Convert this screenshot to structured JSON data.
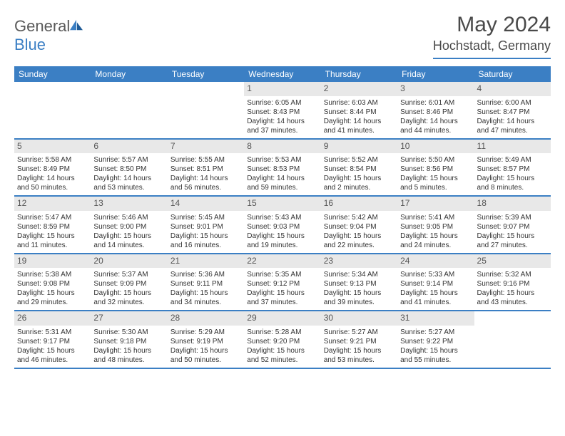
{
  "logo": {
    "text1": "General",
    "text2": "Blue"
  },
  "title": "May 2024",
  "location": "Hochstadt, Germany",
  "colors": {
    "header_bg": "#3b7fc4",
    "daynum_bg": "#e8e8e8",
    "text": "#333333",
    "title": "#4a4a4a"
  },
  "fonts": {
    "title_size": 30,
    "location_size": 18,
    "header_size": 12,
    "cell_size": 10
  },
  "day_names": [
    "Sunday",
    "Monday",
    "Tuesday",
    "Wednesday",
    "Thursday",
    "Friday",
    "Saturday"
  ],
  "weeks": [
    [
      {
        "n": "",
        "sr": "",
        "ss": "",
        "dl": ""
      },
      {
        "n": "",
        "sr": "",
        "ss": "",
        "dl": ""
      },
      {
        "n": "",
        "sr": "",
        "ss": "",
        "dl": ""
      },
      {
        "n": "1",
        "sr": "Sunrise: 6:05 AM",
        "ss": "Sunset: 8:43 PM",
        "dl": "Daylight: 14 hours and 37 minutes."
      },
      {
        "n": "2",
        "sr": "Sunrise: 6:03 AM",
        "ss": "Sunset: 8:44 PM",
        "dl": "Daylight: 14 hours and 41 minutes."
      },
      {
        "n": "3",
        "sr": "Sunrise: 6:01 AM",
        "ss": "Sunset: 8:46 PM",
        "dl": "Daylight: 14 hours and 44 minutes."
      },
      {
        "n": "4",
        "sr": "Sunrise: 6:00 AM",
        "ss": "Sunset: 8:47 PM",
        "dl": "Daylight: 14 hours and 47 minutes."
      }
    ],
    [
      {
        "n": "5",
        "sr": "Sunrise: 5:58 AM",
        "ss": "Sunset: 8:49 PM",
        "dl": "Daylight: 14 hours and 50 minutes."
      },
      {
        "n": "6",
        "sr": "Sunrise: 5:57 AM",
        "ss": "Sunset: 8:50 PM",
        "dl": "Daylight: 14 hours and 53 minutes."
      },
      {
        "n": "7",
        "sr": "Sunrise: 5:55 AM",
        "ss": "Sunset: 8:51 PM",
        "dl": "Daylight: 14 hours and 56 minutes."
      },
      {
        "n": "8",
        "sr": "Sunrise: 5:53 AM",
        "ss": "Sunset: 8:53 PM",
        "dl": "Daylight: 14 hours and 59 minutes."
      },
      {
        "n": "9",
        "sr": "Sunrise: 5:52 AM",
        "ss": "Sunset: 8:54 PM",
        "dl": "Daylight: 15 hours and 2 minutes."
      },
      {
        "n": "10",
        "sr": "Sunrise: 5:50 AM",
        "ss": "Sunset: 8:56 PM",
        "dl": "Daylight: 15 hours and 5 minutes."
      },
      {
        "n": "11",
        "sr": "Sunrise: 5:49 AM",
        "ss": "Sunset: 8:57 PM",
        "dl": "Daylight: 15 hours and 8 minutes."
      }
    ],
    [
      {
        "n": "12",
        "sr": "Sunrise: 5:47 AM",
        "ss": "Sunset: 8:59 PM",
        "dl": "Daylight: 15 hours and 11 minutes."
      },
      {
        "n": "13",
        "sr": "Sunrise: 5:46 AM",
        "ss": "Sunset: 9:00 PM",
        "dl": "Daylight: 15 hours and 14 minutes."
      },
      {
        "n": "14",
        "sr": "Sunrise: 5:45 AM",
        "ss": "Sunset: 9:01 PM",
        "dl": "Daylight: 15 hours and 16 minutes."
      },
      {
        "n": "15",
        "sr": "Sunrise: 5:43 AM",
        "ss": "Sunset: 9:03 PM",
        "dl": "Daylight: 15 hours and 19 minutes."
      },
      {
        "n": "16",
        "sr": "Sunrise: 5:42 AM",
        "ss": "Sunset: 9:04 PM",
        "dl": "Daylight: 15 hours and 22 minutes."
      },
      {
        "n": "17",
        "sr": "Sunrise: 5:41 AM",
        "ss": "Sunset: 9:05 PM",
        "dl": "Daylight: 15 hours and 24 minutes."
      },
      {
        "n": "18",
        "sr": "Sunrise: 5:39 AM",
        "ss": "Sunset: 9:07 PM",
        "dl": "Daylight: 15 hours and 27 minutes."
      }
    ],
    [
      {
        "n": "19",
        "sr": "Sunrise: 5:38 AM",
        "ss": "Sunset: 9:08 PM",
        "dl": "Daylight: 15 hours and 29 minutes."
      },
      {
        "n": "20",
        "sr": "Sunrise: 5:37 AM",
        "ss": "Sunset: 9:09 PM",
        "dl": "Daylight: 15 hours and 32 minutes."
      },
      {
        "n": "21",
        "sr": "Sunrise: 5:36 AM",
        "ss": "Sunset: 9:11 PM",
        "dl": "Daylight: 15 hours and 34 minutes."
      },
      {
        "n": "22",
        "sr": "Sunrise: 5:35 AM",
        "ss": "Sunset: 9:12 PM",
        "dl": "Daylight: 15 hours and 37 minutes."
      },
      {
        "n": "23",
        "sr": "Sunrise: 5:34 AM",
        "ss": "Sunset: 9:13 PM",
        "dl": "Daylight: 15 hours and 39 minutes."
      },
      {
        "n": "24",
        "sr": "Sunrise: 5:33 AM",
        "ss": "Sunset: 9:14 PM",
        "dl": "Daylight: 15 hours and 41 minutes."
      },
      {
        "n": "25",
        "sr": "Sunrise: 5:32 AM",
        "ss": "Sunset: 9:16 PM",
        "dl": "Daylight: 15 hours and 43 minutes."
      }
    ],
    [
      {
        "n": "26",
        "sr": "Sunrise: 5:31 AM",
        "ss": "Sunset: 9:17 PM",
        "dl": "Daylight: 15 hours and 46 minutes."
      },
      {
        "n": "27",
        "sr": "Sunrise: 5:30 AM",
        "ss": "Sunset: 9:18 PM",
        "dl": "Daylight: 15 hours and 48 minutes."
      },
      {
        "n": "28",
        "sr": "Sunrise: 5:29 AM",
        "ss": "Sunset: 9:19 PM",
        "dl": "Daylight: 15 hours and 50 minutes."
      },
      {
        "n": "29",
        "sr": "Sunrise: 5:28 AM",
        "ss": "Sunset: 9:20 PM",
        "dl": "Daylight: 15 hours and 52 minutes."
      },
      {
        "n": "30",
        "sr": "Sunrise: 5:27 AM",
        "ss": "Sunset: 9:21 PM",
        "dl": "Daylight: 15 hours and 53 minutes."
      },
      {
        "n": "31",
        "sr": "Sunrise: 5:27 AM",
        "ss": "Sunset: 9:22 PM",
        "dl": "Daylight: 15 hours and 55 minutes."
      },
      {
        "n": "",
        "sr": "",
        "ss": "",
        "dl": ""
      }
    ]
  ]
}
